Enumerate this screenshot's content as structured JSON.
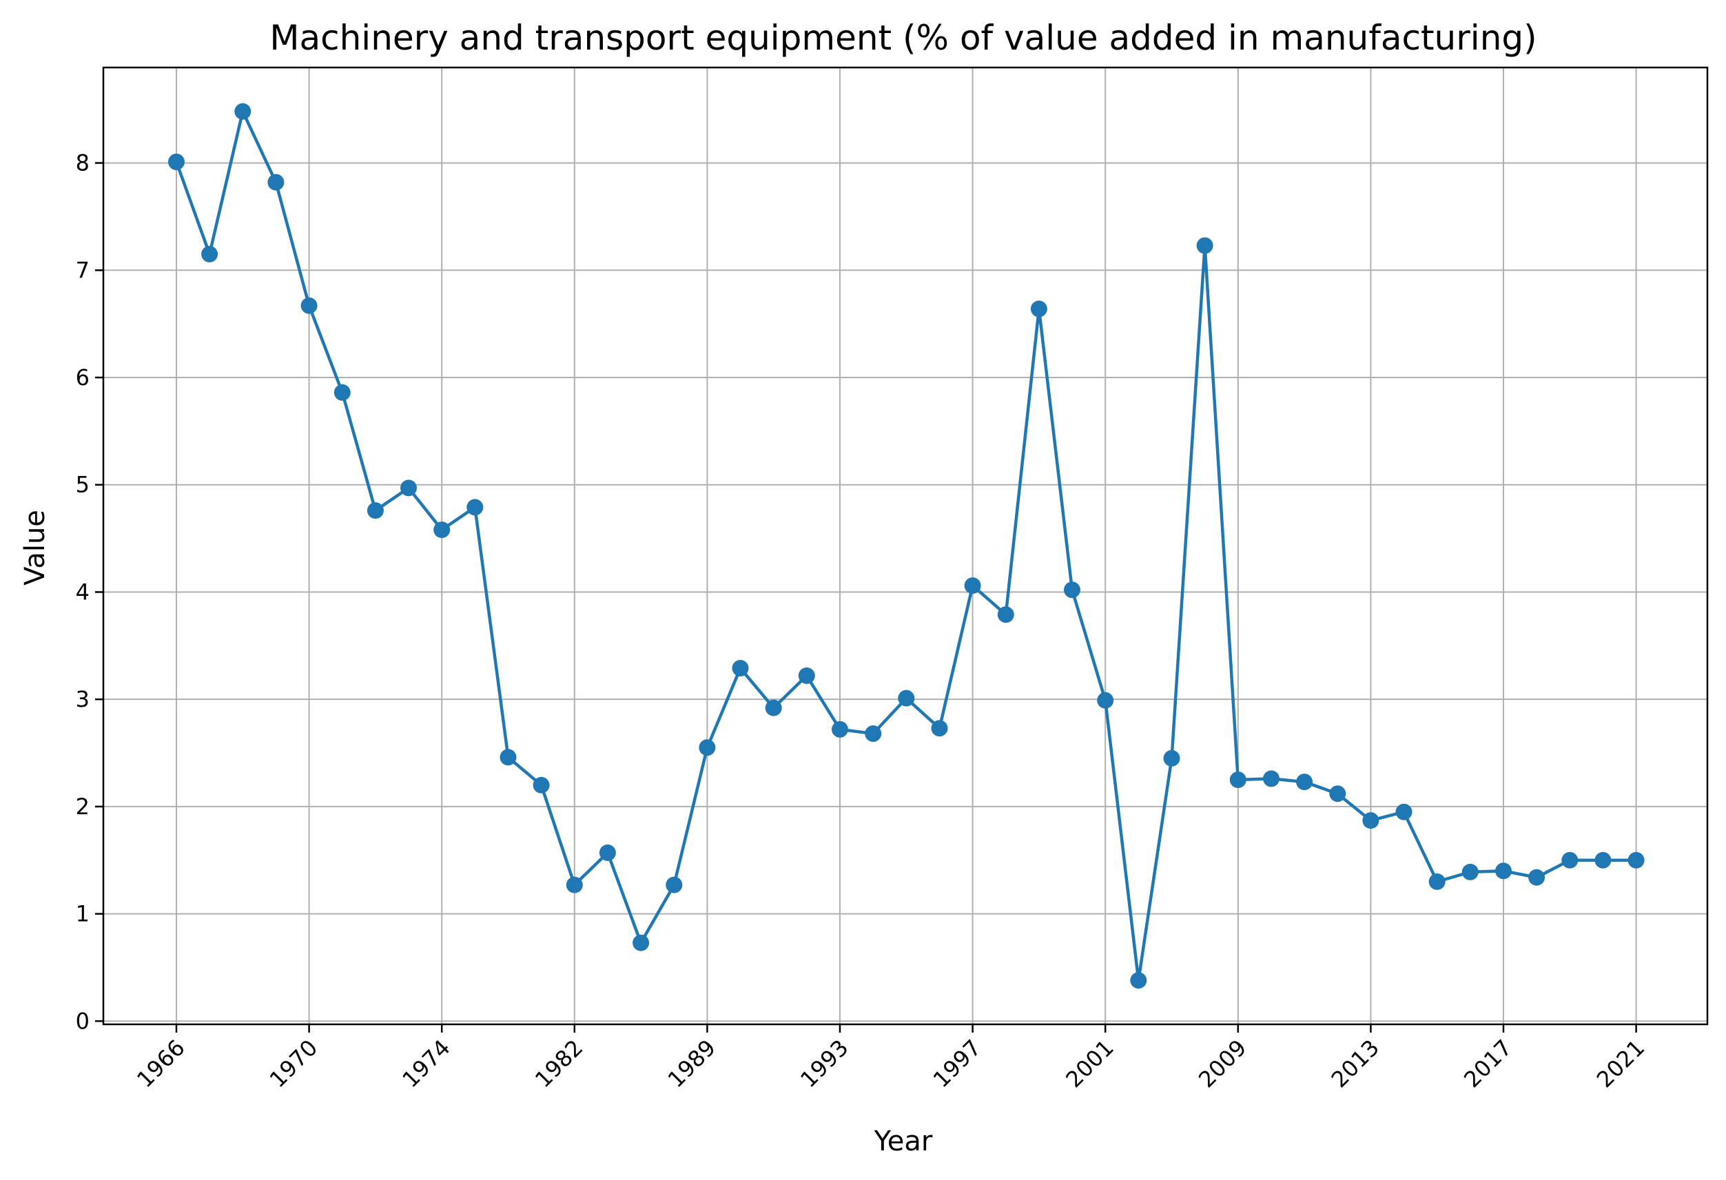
{
  "chart_data": {
    "type": "line",
    "title": "Machinery and transport equipment (% of value added in manufacturing)",
    "xlabel": "Year",
    "ylabel": "Value",
    "x": [
      "1966",
      "1967",
      "1968",
      "1969",
      "1970",
      "1971",
      "1972",
      "1973",
      "1974",
      "1975",
      "1980",
      "1981",
      "1982",
      "1983",
      "1984",
      "1988",
      "1989",
      "1990",
      "1991",
      "1992",
      "1993",
      "1994",
      "1995",
      "1996",
      "1997",
      "1998",
      "1999",
      "2000",
      "2001",
      "2002",
      "2007",
      "2008",
      "2009",
      "2010",
      "2011",
      "2012",
      "2013",
      "2014",
      "2015",
      "2016",
      "2017",
      "2018",
      "2019",
      "2020",
      "2021"
    ],
    "xticks": [
      "1966",
      "1970",
      "1974",
      "1982",
      "1989",
      "1993",
      "1997",
      "2001",
      "2009",
      "2013",
      "2017",
      "2021"
    ],
    "series": [
      {
        "color": "#1f77b4",
        "values": [
          8.01,
          7.15,
          8.48,
          7.82,
          6.67,
          5.86,
          4.76,
          4.97,
          4.58,
          4.79,
          2.46,
          2.2,
          1.27,
          1.57,
          0.73,
          1.27,
          2.55,
          3.29,
          2.92,
          3.22,
          2.72,
          2.68,
          3.01,
          2.73,
          4.06,
          3.79,
          6.64,
          4.02,
          2.99,
          0.38,
          2.45,
          7.23,
          2.25,
          2.26,
          2.23,
          2.12,
          1.87,
          1.95,
          1.3,
          1.39,
          1.4,
          1.34,
          1.5,
          1.5,
          1.5
        ]
      }
    ],
    "yticks": [
      0,
      1,
      2,
      3,
      4,
      5,
      6,
      7,
      8
    ],
    "ylim": [
      -0.03,
      8.89
    ],
    "grid": true,
    "legend": false
  }
}
